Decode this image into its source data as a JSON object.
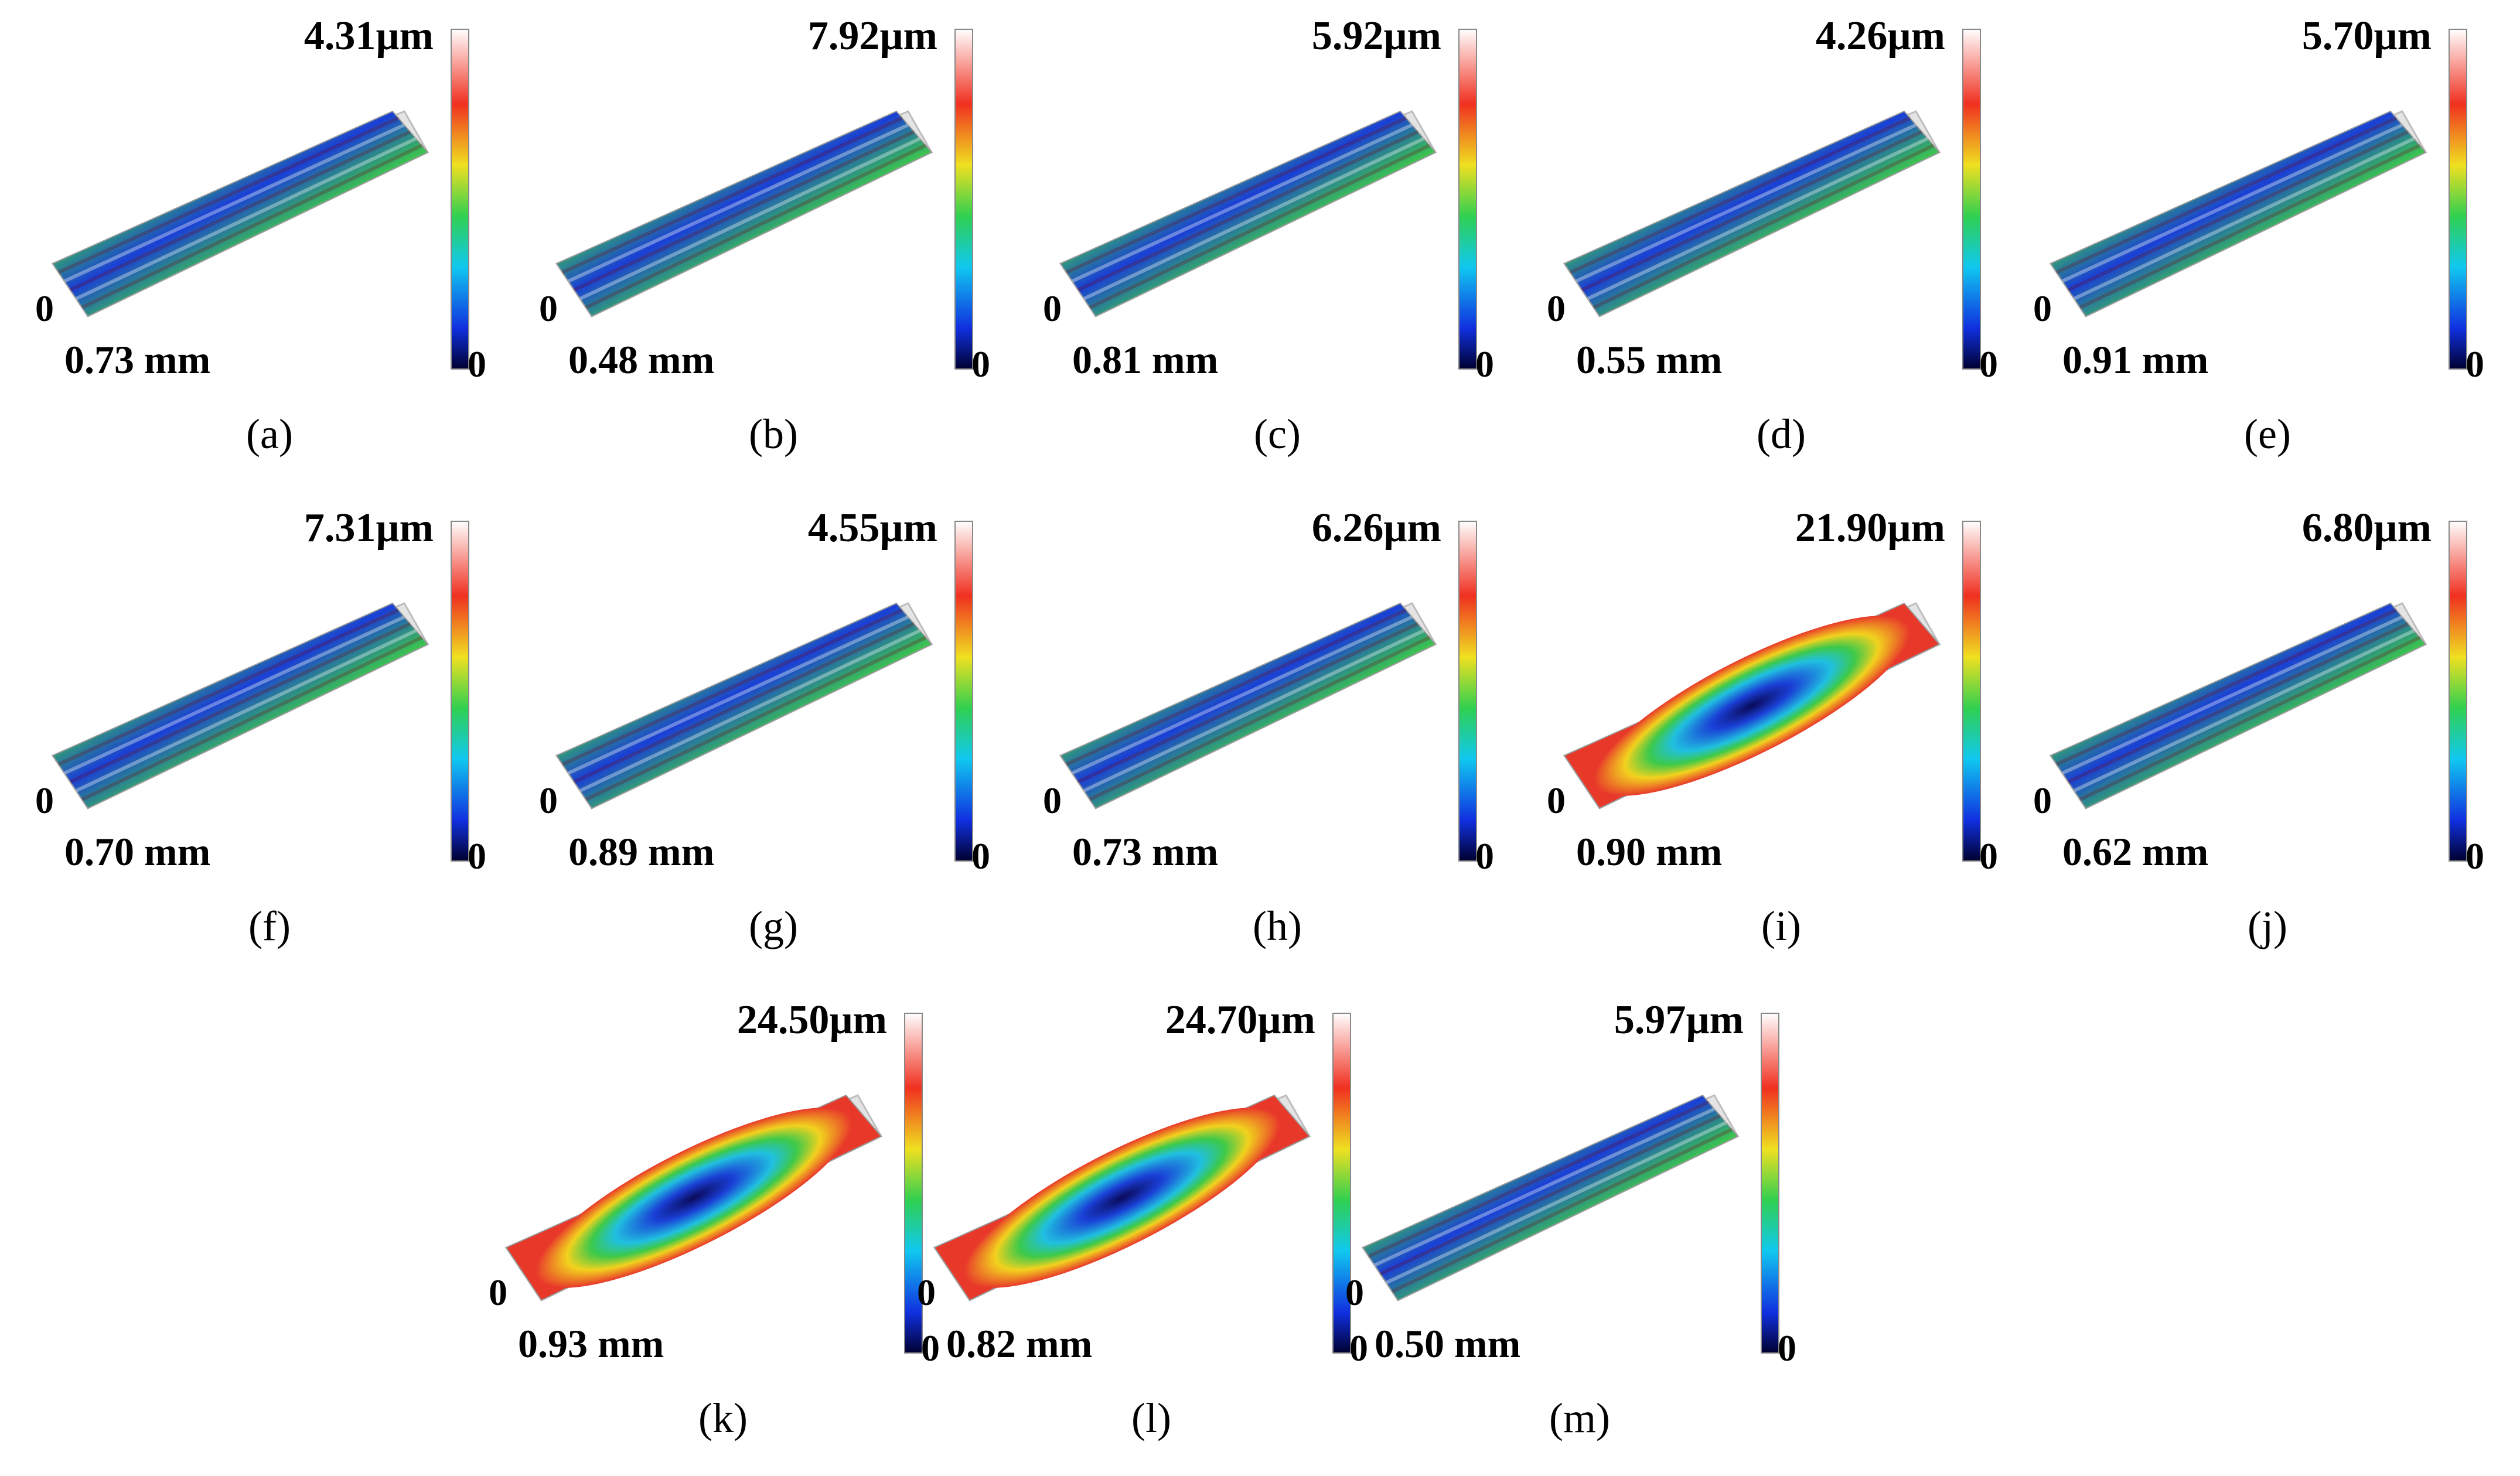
{
  "panels": [
    {
      "label": "(a)",
      "max": "4.31µm",
      "zero": "0",
      "width": "0.73 mm",
      "bar_min": "0",
      "style": "striped"
    },
    {
      "label": "(b)",
      "max": "7.92µm",
      "zero": "0",
      "width": "0.48 mm",
      "bar_min": "0",
      "style": "striped"
    },
    {
      "label": "(c)",
      "max": "5.92µm",
      "zero": "0",
      "width": "0.81 mm",
      "bar_min": "0",
      "style": "striped"
    },
    {
      "label": "(d)",
      "max": "4.26µm",
      "zero": "0",
      "width": "0.55 mm",
      "bar_min": "0",
      "style": "striped"
    },
    {
      "label": "(e)",
      "max": "5.70µm",
      "zero": "0",
      "width": "0.91 mm",
      "bar_min": "0",
      "style": "striped"
    },
    {
      "label": "(f)",
      "max": "7.31µm",
      "zero": "0",
      "width": "0.70 mm",
      "bar_min": "0",
      "style": "striped"
    },
    {
      "label": "(g)",
      "max": "4.55µm",
      "zero": "0",
      "width": "0.89 mm",
      "bar_min": "0",
      "style": "striped"
    },
    {
      "label": "(h)",
      "max": "6.26µm",
      "zero": "0",
      "width": "0.73 mm",
      "bar_min": "0",
      "style": "striped"
    },
    {
      "label": "(i)",
      "max": "21.90µm",
      "zero": "0",
      "width": "0.90 mm",
      "bar_min": "0",
      "style": "crater"
    },
    {
      "label": "(j)",
      "max": "6.80µm",
      "zero": "0",
      "width": "0.62 mm",
      "bar_min": "0",
      "style": "striped"
    },
    {
      "label": "(k)",
      "max": "24.50µm",
      "zero": "0",
      "width": "0.93 mm",
      "bar_min": "0",
      "style": "crater"
    },
    {
      "label": "(l)",
      "max": "24.70µm",
      "zero": "0",
      "width": "0.82 mm",
      "bar_min": "0",
      "style": "crater"
    },
    {
      "label": "(m)",
      "max": "5.97µm",
      "zero": "0",
      "width": "0.50 mm",
      "bar_min": "0",
      "style": "striped"
    }
  ],
  "colors": {
    "surface_high": "#e8382a",
    "surface_mid": "#f2d21e",
    "surface_green": "#3cc94a",
    "surface_low": "#1a3fd6",
    "surface_deep": "#0a0a5a",
    "box_edge": "#bdbdbd"
  }
}
